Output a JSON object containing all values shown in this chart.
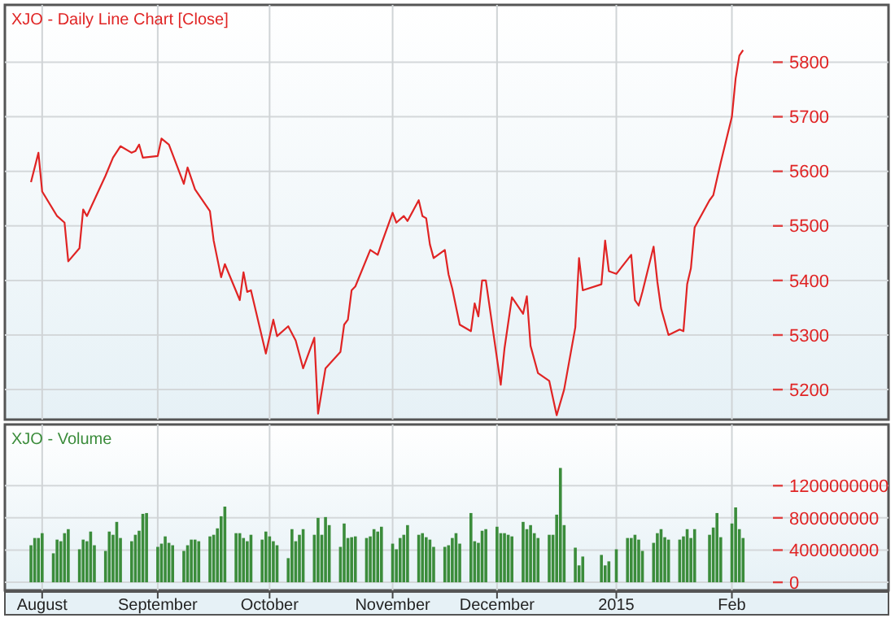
{
  "chart_data": [
    {
      "type": "line",
      "title": "XJO - Daily Line Chart [Close]",
      "tick_labels": "y",
      "grid": true,
      "xlim": [
        "2014-07-22",
        "2015-03-16"
      ],
      "xticks": [
        {
          "value": "2014-08-01",
          "label": null
        },
        {
          "value": "2014-09-01",
          "label": null
        },
        {
          "value": "2014-10-01",
          "label": null
        },
        {
          "value": "2014-11-03",
          "label": null
        },
        {
          "value": "2014-12-01",
          "label": null
        },
        {
          "value": "2015-01-02",
          "label": null
        },
        {
          "value": "2015-02-02",
          "label": null
        }
      ],
      "ylim": [
        5145,
        5905
      ],
      "yticks": [
        5200,
        5300,
        5400,
        5500,
        5600,
        5700,
        5800
      ],
      "series": [
        {
          "color": "#e02424",
          "x": [
            "2014-07-29",
            "2014-07-31",
            "2014-08-01",
            "2014-08-05",
            "2014-08-07",
            "2014-08-08",
            "2014-08-11",
            "2014-08-12",
            "2014-08-13",
            "2014-08-18",
            "2014-08-20",
            "2014-08-22",
            "2014-08-25",
            "2014-08-26",
            "2014-08-27",
            "2014-08-28",
            "2014-09-01",
            "2014-09-02",
            "2014-09-04",
            "2014-09-08",
            "2014-09-09",
            "2014-09-11",
            "2014-09-15",
            "2014-09-16",
            "2014-09-18",
            "2014-09-19",
            "2014-09-23",
            "2014-09-24",
            "2014-09-25",
            "2014-09-26",
            "2014-09-30",
            "2014-10-02",
            "2014-10-03",
            "2014-10-06",
            "2014-10-08",
            "2014-10-10",
            "2014-10-13",
            "2014-10-14",
            "2014-10-16",
            "2014-10-20",
            "2014-10-21",
            "2014-10-22",
            "2014-10-23",
            "2014-10-24",
            "2014-10-28",
            "2014-10-30",
            "2014-10-31",
            "2014-11-03",
            "2014-11-04",
            "2014-11-06",
            "2014-11-07",
            "2014-11-10",
            "2014-11-11",
            "2014-11-12",
            "2014-11-13",
            "2014-11-14",
            "2014-11-17",
            "2014-11-18",
            "2014-11-19",
            "2014-11-21",
            "2014-11-24",
            "2014-11-25",
            "2014-11-26",
            "2014-11-27",
            "2014-11-28",
            "2014-12-02",
            "2014-12-03",
            "2014-12-05",
            "2014-12-08",
            "2014-12-09",
            "2014-12-10",
            "2014-12-12",
            "2014-12-15",
            "2014-12-17",
            "2014-12-19",
            "2014-12-22",
            "2014-12-23",
            "2014-12-24",
            "2014-12-29",
            "2014-12-30",
            "2014-12-31",
            "2015-01-02",
            "2015-01-06",
            "2015-01-07",
            "2015-01-08",
            "2015-01-09",
            "2015-01-12",
            "2015-01-13",
            "2015-01-14",
            "2015-01-16",
            "2015-01-19",
            "2015-01-20",
            "2015-01-21",
            "2015-01-22",
            "2015-01-23",
            "2015-01-27",
            "2015-01-28",
            "2015-01-29",
            "2015-01-30",
            "2015-02-02",
            "2015-02-03",
            "2015-02-04",
            "2015-02-05"
          ],
          "values": [
            5580,
            5634,
            5563,
            5518,
            5506,
            5435,
            5459,
            5530,
            5518,
            5592,
            5625,
            5646,
            5634,
            5637,
            5649,
            5625,
            5628,
            5660,
            5649,
            5577,
            5607,
            5567,
            5527,
            5473,
            5406,
            5430,
            5364,
            5415,
            5379,
            5382,
            5266,
            5328,
            5298,
            5316,
            5290,
            5239,
            5295,
            5156,
            5239,
            5269,
            5319,
            5328,
            5382,
            5389,
            5456,
            5447,
            5467,
            5524,
            5506,
            5518,
            5509,
            5547,
            5518,
            5514,
            5466,
            5441,
            5456,
            5411,
            5385,
            5319,
            5307,
            5358,
            5334,
            5400,
            5400,
            5209,
            5275,
            5369,
            5339,
            5371,
            5280,
            5230,
            5216,
            5153,
            5200,
            5314,
            5441,
            5382,
            5393,
            5473,
            5417,
            5412,
            5447,
            5364,
            5354,
            5379,
            5462,
            5398,
            5349,
            5300,
            5310,
            5307,
            5393,
            5422,
            5497,
            5547,
            5556,
            5586,
            5616,
            5700,
            5770,
            5812,
            5822
          ]
        }
      ]
    },
    {
      "type": "bar",
      "title": "XJO - Volume",
      "grid": true,
      "color": "#3b8c3b",
      "xlim": [
        "2014-07-22",
        "2015-03-16"
      ],
      "xticks": [
        {
          "value": "2014-08-01",
          "label": "August"
        },
        {
          "value": "2014-09-01",
          "label": "September"
        },
        {
          "value": "2014-10-01",
          "label": "October"
        },
        {
          "value": "2014-11-03",
          "label": "November"
        },
        {
          "value": "2014-12-01",
          "label": "December"
        },
        {
          "value": "2015-01-02",
          "label": "2015"
        },
        {
          "value": "2015-02-02",
          "label": "Feb"
        }
      ],
      "ylim": [
        -100000000,
        1960000000
      ],
      "yticks": [
        0,
        400000000,
        800000000,
        1200000000
      ],
      "x": [
        "2014-07-29",
        "2014-07-30",
        "2014-07-31",
        "2014-08-01",
        "2014-08-04",
        "2014-08-05",
        "2014-08-06",
        "2014-08-07",
        "2014-08-08",
        "2014-08-11",
        "2014-08-12",
        "2014-08-13",
        "2014-08-14",
        "2014-08-15",
        "2014-08-18",
        "2014-08-19",
        "2014-08-20",
        "2014-08-21",
        "2014-08-22",
        "2014-08-25",
        "2014-08-26",
        "2014-08-27",
        "2014-08-28",
        "2014-08-29",
        "2014-09-01",
        "2014-09-02",
        "2014-09-03",
        "2014-09-04",
        "2014-09-05",
        "2014-09-08",
        "2014-09-09",
        "2014-09-10",
        "2014-09-11",
        "2014-09-12",
        "2014-09-15",
        "2014-09-16",
        "2014-09-17",
        "2014-09-18",
        "2014-09-19",
        "2014-09-22",
        "2014-09-23",
        "2014-09-24",
        "2014-09-25",
        "2014-09-26",
        "2014-09-29",
        "2014-09-30",
        "2014-10-01",
        "2014-10-02",
        "2014-10-03",
        "2014-10-06",
        "2014-10-07",
        "2014-10-08",
        "2014-10-09",
        "2014-10-10",
        "2014-10-13",
        "2014-10-14",
        "2014-10-15",
        "2014-10-16",
        "2014-10-17",
        "2014-10-20",
        "2014-10-21",
        "2014-10-22",
        "2014-10-23",
        "2014-10-24",
        "2014-10-27",
        "2014-10-28",
        "2014-10-29",
        "2014-10-30",
        "2014-10-31",
        "2014-11-03",
        "2014-11-04",
        "2014-11-05",
        "2014-11-06",
        "2014-11-07",
        "2014-11-10",
        "2014-11-11",
        "2014-11-12",
        "2014-11-13",
        "2014-11-14",
        "2014-11-17",
        "2014-11-18",
        "2014-11-19",
        "2014-11-20",
        "2014-11-21",
        "2014-11-24",
        "2014-11-25",
        "2014-11-26",
        "2014-11-27",
        "2014-11-28",
        "2014-12-01",
        "2014-12-02",
        "2014-12-03",
        "2014-12-04",
        "2014-12-05",
        "2014-12-08",
        "2014-12-09",
        "2014-12-10",
        "2014-12-11",
        "2014-12-12",
        "2014-12-15",
        "2014-12-16",
        "2014-12-17",
        "2014-12-18",
        "2014-12-19",
        "2014-12-22",
        "2014-12-23",
        "2014-12-24",
        "2014-12-29",
        "2014-12-30",
        "2014-12-31",
        "2015-01-02",
        "2015-01-05",
        "2015-01-06",
        "2015-01-07",
        "2015-01-08",
        "2015-01-09",
        "2015-01-12",
        "2015-01-13",
        "2015-01-14",
        "2015-01-15",
        "2015-01-16",
        "2015-01-19",
        "2015-01-20",
        "2015-01-21",
        "2015-01-22",
        "2015-01-23",
        "2015-01-27",
        "2015-01-28",
        "2015-01-29",
        "2015-01-30",
        "2015-02-02",
        "2015-02-03",
        "2015-02-04",
        "2015-02-05"
      ],
      "values": [
        460000000,
        550000000,
        550000000,
        610000000,
        360000000,
        530000000,
        510000000,
        610000000,
        660000000,
        410000000,
        530000000,
        510000000,
        630000000,
        460000000,
        390000000,
        630000000,
        590000000,
        750000000,
        550000000,
        510000000,
        590000000,
        640000000,
        850000000,
        860000000,
        440000000,
        480000000,
        570000000,
        490000000,
        460000000,
        390000000,
        460000000,
        530000000,
        530000000,
        510000000,
        570000000,
        590000000,
        670000000,
        820000000,
        940000000,
        610000000,
        610000000,
        550000000,
        510000000,
        590000000,
        530000000,
        630000000,
        570000000,
        510000000,
        460000000,
        300000000,
        660000000,
        510000000,
        590000000,
        660000000,
        590000000,
        800000000,
        590000000,
        810000000,
        710000000,
        440000000,
        730000000,
        550000000,
        560000000,
        570000000,
        550000000,
        570000000,
        660000000,
        630000000,
        690000000,
        480000000,
        410000000,
        550000000,
        590000000,
        710000000,
        590000000,
        610000000,
        560000000,
        530000000,
        440000000,
        440000000,
        460000000,
        550000000,
        610000000,
        480000000,
        860000000,
        510000000,
        490000000,
        640000000,
        660000000,
        690000000,
        610000000,
        610000000,
        590000000,
        570000000,
        750000000,
        660000000,
        710000000,
        610000000,
        550000000,
        590000000,
        590000000,
        840000000,
        1420000000,
        710000000,
        430000000,
        210000000,
        320000000,
        340000000,
        210000000,
        260000000,
        410000000,
        550000000,
        550000000,
        590000000,
        530000000,
        390000000,
        490000000,
        610000000,
        660000000,
        560000000,
        530000000,
        530000000,
        570000000,
        660000000,
        550000000,
        660000000,
        590000000,
        680000000,
        860000000,
        560000000,
        730000000,
        930000000,
        660000000,
        550000000
      ]
    }
  ]
}
